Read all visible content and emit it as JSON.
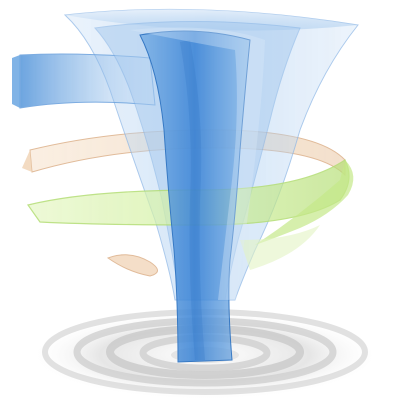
{
  "illustration": {
    "subject": "tornado-funnel",
    "colors": {
      "background": "#ffffff",
      "funnel_dark": "#3f86d6",
      "funnel_mid": "#7fb3e6",
      "funnel_light": "#cfe2f6",
      "band_green": "#d6f2a6",
      "band_green_edge": "#b3dd74",
      "band_peach": "#f3d9bf",
      "band_peach_edge": "#dcb089",
      "ripple_light": "#f4f4f4",
      "ripple_dark": "#c9c9c9"
    }
  }
}
